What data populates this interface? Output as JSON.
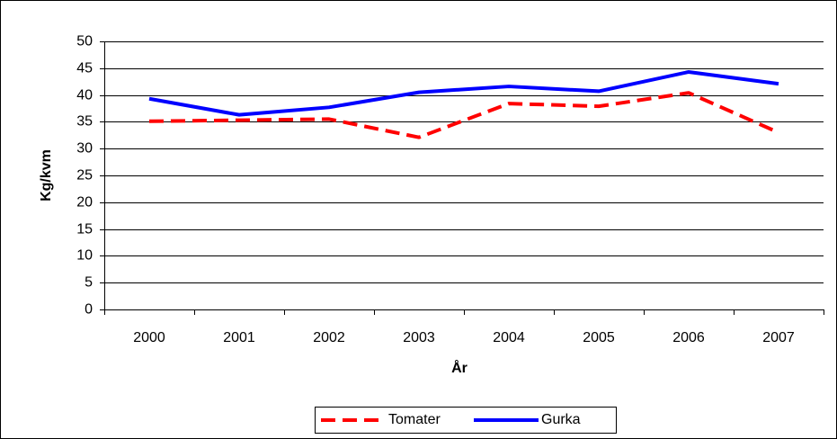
{
  "chart_data": {
    "type": "line",
    "x_label": "År",
    "y_label": "Kg/kvm",
    "categories": [
      "2000",
      "2001",
      "2002",
      "2003",
      "2004",
      "2005",
      "2006",
      "2007"
    ],
    "series": [
      {
        "name": "Tomater",
        "color": "#ff0000",
        "dashed": true,
        "values": [
          35.1,
          35.3,
          35.5,
          32.1,
          38.4,
          37.9,
          40.4,
          33.0
        ]
      },
      {
        "name": "Gurka",
        "color": "#0000ff",
        "dashed": false,
        "values": [
          39.3,
          36.3,
          37.7,
          40.5,
          41.6,
          40.7,
          44.3,
          42.1
        ]
      }
    ],
    "ylim": [
      0,
      50
    ],
    "yticks": [
      0,
      5,
      10,
      15,
      20,
      25,
      30,
      35,
      40,
      45,
      50
    ],
    "grid": true,
    "legend": "bottom"
  }
}
